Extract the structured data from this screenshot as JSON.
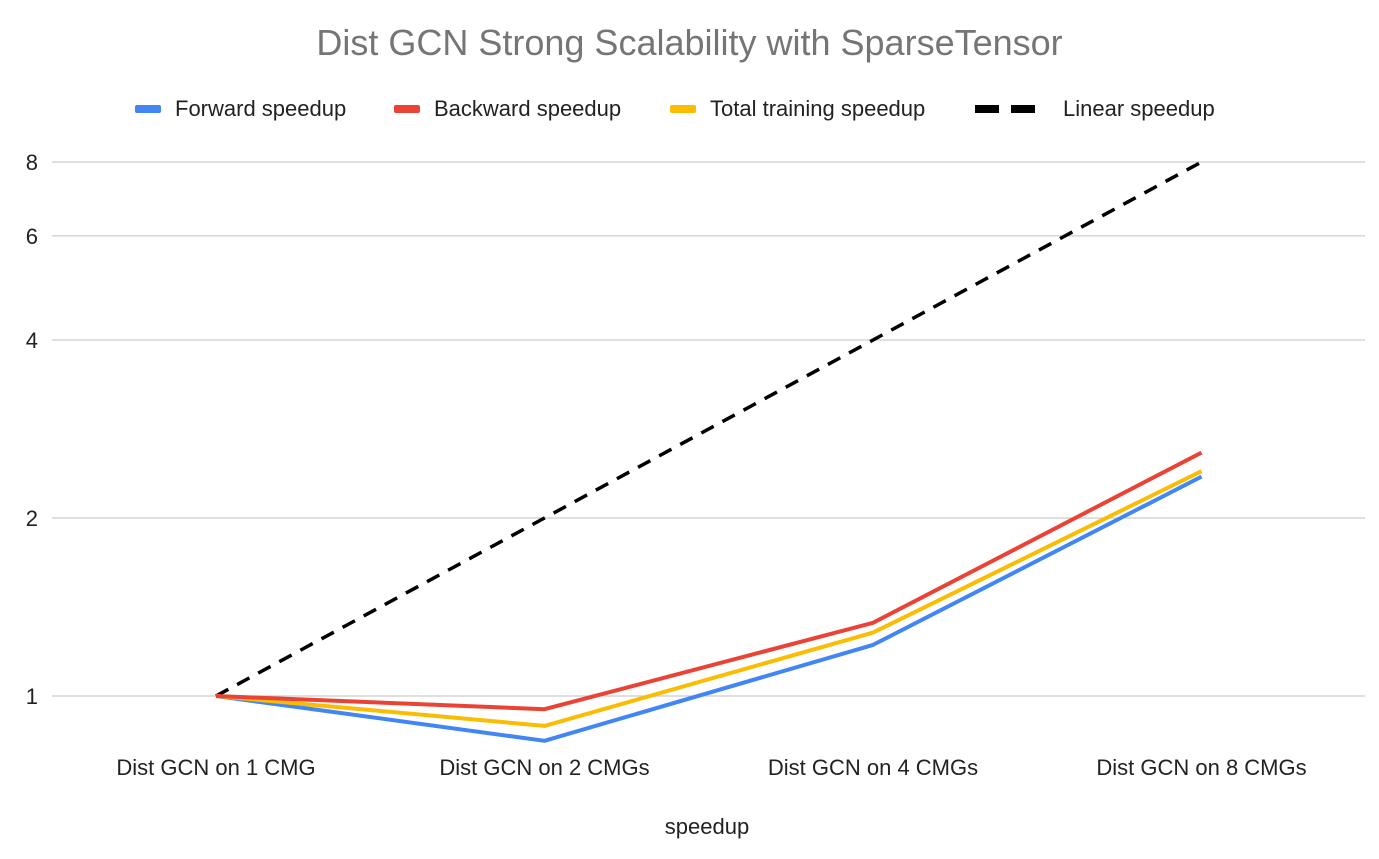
{
  "chart_data": {
    "type": "line",
    "title": "Dist GCN Strong Scalability with SparseTensor",
    "xlabel": "speedup",
    "ylabel": "",
    "y_scale": "log2",
    "ylim": [
      0.85,
      8
    ],
    "yticks": [
      1,
      2,
      4,
      6,
      8
    ],
    "ytick_labels": [
      "1",
      "2",
      "4",
      "6",
      "8"
    ],
    "grid": true,
    "legend_position": "top",
    "categories": [
      "Dist GCN on 1 CMG",
      "Dist GCN on 2 CMGs",
      "Dist GCN on 4 CMGs",
      "Dist GCN on 8 CMGs"
    ],
    "series": [
      {
        "name": "Forward speedup",
        "color": "#4285F4",
        "dashed": false,
        "values": [
          1.0,
          0.84,
          1.22,
          2.35
        ]
      },
      {
        "name": "Backward speedup",
        "color": "#EA4335",
        "dashed": false,
        "values": [
          1.0,
          0.95,
          1.33,
          2.58
        ]
      },
      {
        "name": "Total training speedup",
        "color": "#FBBC04",
        "dashed": false,
        "values": [
          1.0,
          0.89,
          1.28,
          2.4
        ]
      },
      {
        "name": "Linear speedup",
        "color": "#000000",
        "dashed": true,
        "values": [
          1,
          2,
          4,
          8
        ]
      }
    ]
  }
}
